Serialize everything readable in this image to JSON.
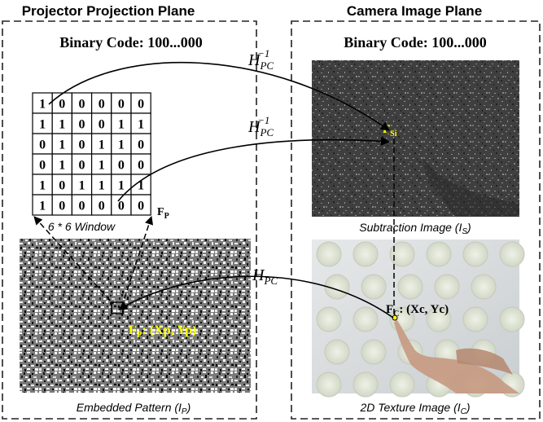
{
  "left_panel": {
    "title": "Projector Projection Plane",
    "code_label": "Binary Code: 100...000",
    "window_caption": "6 * 6 Window",
    "feature_label": "F",
    "feature_sub": "P",
    "point_label": "F",
    "point_sub": "P",
    "point_coords": ": (Xp, Yp)",
    "caption_main": "Embedded Pattern (I",
    "caption_sub": "P",
    "caption_end": ")"
  },
  "right_panel": {
    "title": "Camera Image Plane",
    "code_label": "Binary Code: 100...000",
    "feature_label": "F",
    "feature_sub": "Si",
    "point_label": "F",
    "point_sub": "C",
    "point_coords": ": (Xc, Yc)",
    "top_caption_main": "Subtraction Image (I",
    "top_caption_sub": "S",
    "top_caption_end": ")",
    "bottom_caption_main": "2D Texture Image (I",
    "bottom_caption_sub": "C",
    "bottom_caption_end": ")"
  },
  "grid": {
    "rows": [
      [
        "1",
        "0",
        "0",
        "0",
        "0",
        "0"
      ],
      [
        "1",
        "1",
        "0",
        "0",
        "1",
        "1"
      ],
      [
        "0",
        "1",
        "0",
        "1",
        "1",
        "0"
      ],
      [
        "0",
        "1",
        "0",
        "1",
        "0",
        "0"
      ],
      [
        "1",
        "0",
        "1",
        "1",
        "1",
        "1"
      ],
      [
        "1",
        "0",
        "0",
        "0",
        "0",
        "0"
      ]
    ]
  },
  "transforms": [
    {
      "base": "H",
      "sub": "PC",
      "sup": "−1"
    },
    {
      "base": "H",
      "sub": "PC",
      "sup": "−1"
    },
    {
      "base": "H",
      "sub": "PC",
      "sup": ""
    }
  ],
  "colors": {
    "highlight": "#ffff00",
    "border": "#222222",
    "text": "#000000"
  }
}
